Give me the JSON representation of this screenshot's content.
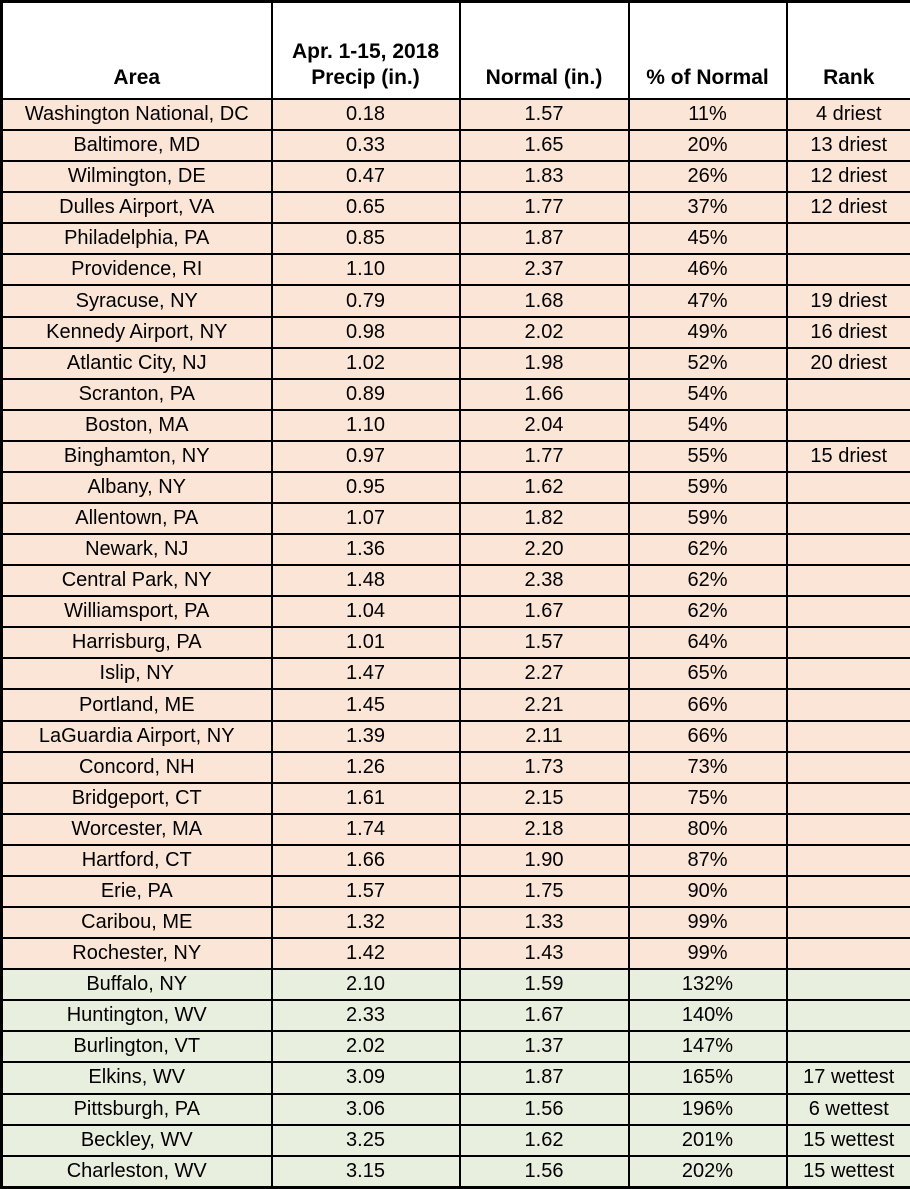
{
  "colors": {
    "below_normal_row_bg": "#fbe5d6",
    "above_normal_row_bg": "#e9efdf",
    "header_bg": "#ffffff",
    "grid_border": "#000000",
    "text": "#000000"
  },
  "chart_data": {
    "type": "table",
    "columns": [
      "Area",
      "Apr. 1-15, 2018\nPrecip (in.)",
      "Normal (in.)",
      "% of Normal",
      "Rank"
    ],
    "column_keys": [
      "area",
      "precip",
      "normal",
      "pct",
      "rank"
    ],
    "row_color_rule": "pct >= 100% rows shaded green (above normal), pct < 100% rows shaded peach (below normal)",
    "rows": [
      {
        "area": "Washington National, DC",
        "precip": "0.18",
        "normal": "1.57",
        "pct": "11%",
        "rank": "4 driest"
      },
      {
        "area": "Baltimore, MD",
        "precip": "0.33",
        "normal": "1.65",
        "pct": "20%",
        "rank": "13 driest"
      },
      {
        "area": "Wilmington, DE",
        "precip": "0.47",
        "normal": "1.83",
        "pct": "26%",
        "rank": "12 driest"
      },
      {
        "area": "Dulles Airport, VA",
        "precip": "0.65",
        "normal": "1.77",
        "pct": "37%",
        "rank": "12 driest"
      },
      {
        "area": "Philadelphia, PA",
        "precip": "0.85",
        "normal": "1.87",
        "pct": "45%",
        "rank": ""
      },
      {
        "area": "Providence, RI",
        "precip": "1.10",
        "normal": "2.37",
        "pct": "46%",
        "rank": ""
      },
      {
        "area": "Syracuse, NY",
        "precip": "0.79",
        "normal": "1.68",
        "pct": "47%",
        "rank": "19 driest"
      },
      {
        "area": "Kennedy Airport, NY",
        "precip": "0.98",
        "normal": "2.02",
        "pct": "49%",
        "rank": "16 driest"
      },
      {
        "area": "Atlantic City, NJ",
        "precip": "1.02",
        "normal": "1.98",
        "pct": "52%",
        "rank": "20 driest"
      },
      {
        "area": "Scranton, PA",
        "precip": "0.89",
        "normal": "1.66",
        "pct": "54%",
        "rank": ""
      },
      {
        "area": "Boston, MA",
        "precip": "1.10",
        "normal": "2.04",
        "pct": "54%",
        "rank": ""
      },
      {
        "area": "Binghamton, NY",
        "precip": "0.97",
        "normal": "1.77",
        "pct": "55%",
        "rank": "15 driest"
      },
      {
        "area": "Albany, NY",
        "precip": "0.95",
        "normal": "1.62",
        "pct": "59%",
        "rank": ""
      },
      {
        "area": "Allentown, PA",
        "precip": "1.07",
        "normal": "1.82",
        "pct": "59%",
        "rank": ""
      },
      {
        "area": "Newark, NJ",
        "precip": "1.36",
        "normal": "2.20",
        "pct": "62%",
        "rank": ""
      },
      {
        "area": "Central Park, NY",
        "precip": "1.48",
        "normal": "2.38",
        "pct": "62%",
        "rank": ""
      },
      {
        "area": "Williamsport, PA",
        "precip": "1.04",
        "normal": "1.67",
        "pct": "62%",
        "rank": ""
      },
      {
        "area": "Harrisburg, PA",
        "precip": "1.01",
        "normal": "1.57",
        "pct": "64%",
        "rank": ""
      },
      {
        "area": "Islip, NY",
        "precip": "1.47",
        "normal": "2.27",
        "pct": "65%",
        "rank": ""
      },
      {
        "area": "Portland, ME",
        "precip": "1.45",
        "normal": "2.21",
        "pct": "66%",
        "rank": ""
      },
      {
        "area": "LaGuardia Airport, NY",
        "precip": "1.39",
        "normal": "2.11",
        "pct": "66%",
        "rank": ""
      },
      {
        "area": "Concord, NH",
        "precip": "1.26",
        "normal": "1.73",
        "pct": "73%",
        "rank": ""
      },
      {
        "area": "Bridgeport, CT",
        "precip": "1.61",
        "normal": "2.15",
        "pct": "75%",
        "rank": ""
      },
      {
        "area": "Worcester, MA",
        "precip": "1.74",
        "normal": "2.18",
        "pct": "80%",
        "rank": ""
      },
      {
        "area": "Hartford, CT",
        "precip": "1.66",
        "normal": "1.90",
        "pct": "87%",
        "rank": ""
      },
      {
        "area": "Erie, PA",
        "precip": "1.57",
        "normal": "1.75",
        "pct": "90%",
        "rank": ""
      },
      {
        "area": "Caribou, ME",
        "precip": "1.32",
        "normal": "1.33",
        "pct": "99%",
        "rank": ""
      },
      {
        "area": "Rochester, NY",
        "precip": "1.42",
        "normal": "1.43",
        "pct": "99%",
        "rank": ""
      },
      {
        "area": "Buffalo, NY",
        "precip": "2.10",
        "normal": "1.59",
        "pct": "132%",
        "rank": ""
      },
      {
        "area": "Huntington, WV",
        "precip": "2.33",
        "normal": "1.67",
        "pct": "140%",
        "rank": ""
      },
      {
        "area": "Burlington, VT",
        "precip": "2.02",
        "normal": "1.37",
        "pct": "147%",
        "rank": ""
      },
      {
        "area": "Elkins, WV",
        "precip": "3.09",
        "normal": "1.87",
        "pct": "165%",
        "rank": "17 wettest"
      },
      {
        "area": "Pittsburgh, PA",
        "precip": "3.06",
        "normal": "1.56",
        "pct": "196%",
        "rank": "6 wettest"
      },
      {
        "area": "Beckley, WV",
        "precip": "3.25",
        "normal": "1.62",
        "pct": "201%",
        "rank": "15 wettest"
      },
      {
        "area": "Charleston, WV",
        "precip": "3.15",
        "normal": "1.56",
        "pct": "202%",
        "rank": "15 wettest"
      }
    ]
  }
}
